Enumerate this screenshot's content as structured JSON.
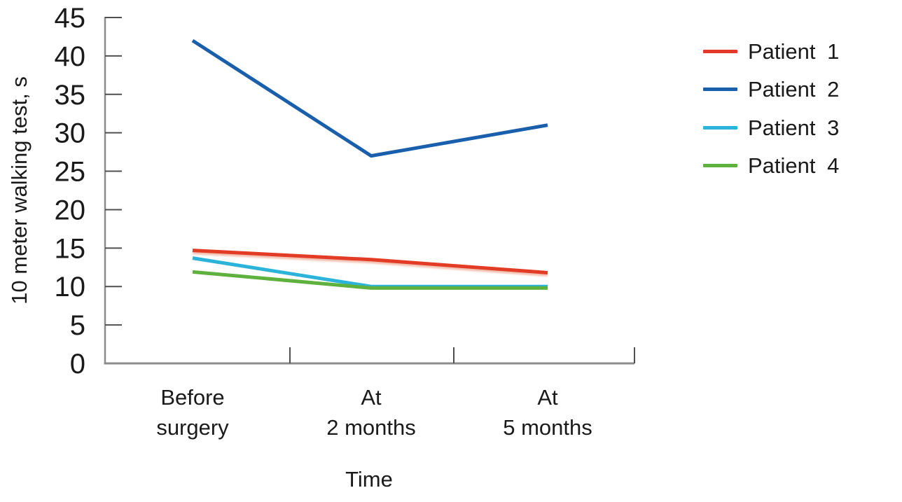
{
  "style": {
    "background": "#ffffff",
    "axis_color": "#8c8c8c",
    "tick_color": "#4f4f4f",
    "text_color": "#1a1a1a"
  },
  "chart_data": {
    "type": "line",
    "title": "",
    "xlabel": "Time",
    "ylabel": "10 meter walking test, s",
    "categories": [
      "Before surgery",
      "At 2 months",
      "At 5 months"
    ],
    "category_label_lines": [
      [
        "Before",
        "surgery"
      ],
      [
        "At",
        "2 months"
      ],
      [
        "At",
        "5 months"
      ]
    ],
    "ylim": [
      0,
      45
    ],
    "yticks": [
      0,
      5,
      10,
      15,
      20,
      25,
      30,
      35,
      40,
      45
    ],
    "grid": false,
    "legend_position": "right",
    "series": [
      {
        "name": "Patient 1",
        "color": "#e23a28",
        "values": [
          14.7,
          13.5,
          11.8
        ]
      },
      {
        "name": "Patient 2",
        "color": "#1a5fac",
        "values": [
          42,
          27,
          31
        ]
      },
      {
        "name": "Patient 3",
        "color": "#2bb3da",
        "values": [
          13.7,
          10,
          10
        ]
      },
      {
        "name": "Patient 4",
        "color": "#5fb13e",
        "values": [
          11.9,
          9.8,
          9.8
        ]
      }
    ]
  }
}
